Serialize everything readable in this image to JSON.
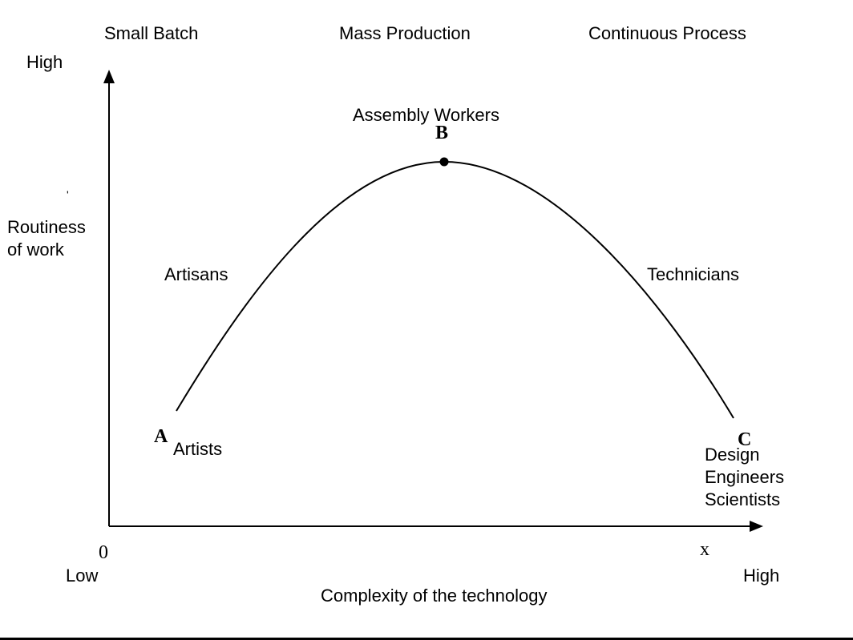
{
  "columns": {
    "left": "Small Batch",
    "middle": "Mass Production",
    "right": "Continuous Process"
  },
  "y_axis": {
    "high": "High",
    "label_line1": "Routiness",
    "label_line2": "of work",
    "stray_mark": "'"
  },
  "x_axis": {
    "origin": "0",
    "end": "x",
    "low": "Low",
    "high": "High",
    "label": "Complexity of the technology"
  },
  "points": {
    "a": {
      "letter": "A",
      "label": "Artists"
    },
    "b": {
      "letter": "B",
      "label": "Assembly  Workers"
    },
    "c": {
      "letter": "C",
      "label_lines": [
        "Design",
        "Engineers",
        "Scientists"
      ]
    }
  },
  "curve_labels": {
    "left": "Artisans",
    "right": "Technicians"
  }
}
